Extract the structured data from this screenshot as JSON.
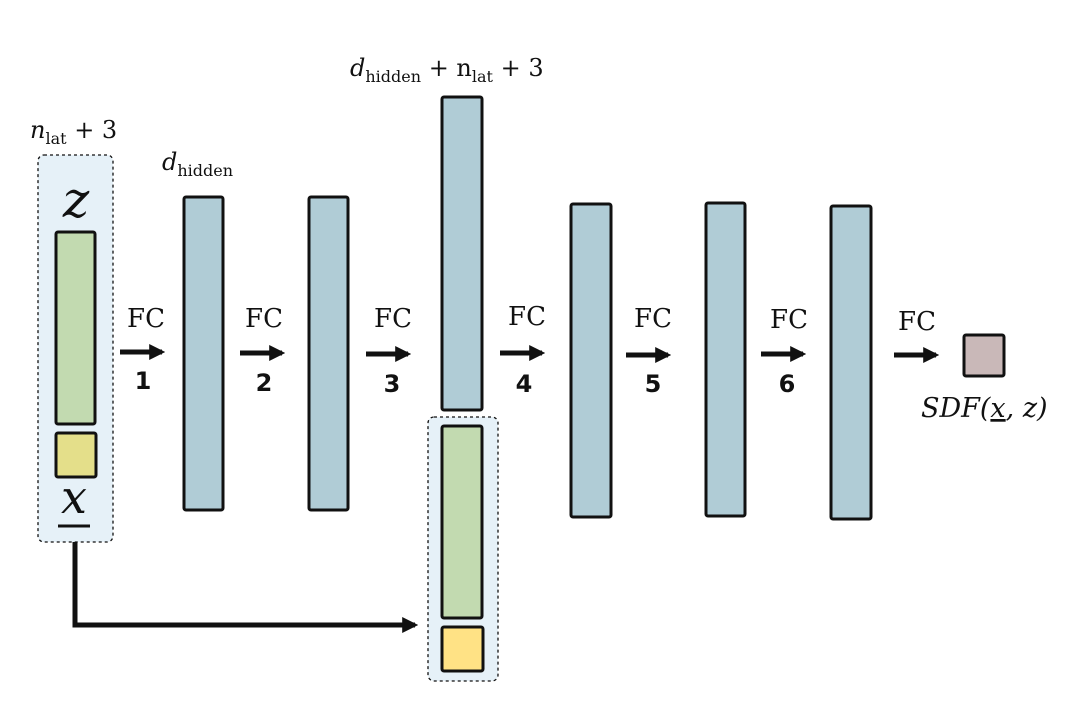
{
  "colors": {
    "layer": "#b0ccd6",
    "latent": "#c2dab0",
    "position_dark": "#e4df8a",
    "position_light": "#ffe285",
    "output": "#c9b8b8",
    "group_bg": "#e6f1f8",
    "stroke": "#111111"
  },
  "labels": {
    "input_size": {
      "base": "n",
      "sub": "lat",
      "rest": " + 3"
    },
    "hidden_size": {
      "base": "d",
      "sub": "hidden"
    },
    "skip_size": {
      "base": "d",
      "sub": "hidden",
      "mid": " + n",
      "sub2": "lat",
      "rest": " + 3"
    },
    "z": "z",
    "x": "x",
    "output": {
      "prefix": "SDF(",
      "x": "x",
      "suffix": ", z)"
    }
  },
  "fc_steps": [
    {
      "label": "FC",
      "number": "1"
    },
    {
      "label": "FC",
      "number": "2"
    },
    {
      "label": "FC",
      "number": "3"
    },
    {
      "label": "FC",
      "number": "4"
    },
    {
      "label": "FC",
      "number": "5"
    },
    {
      "label": "FC",
      "number": "6"
    },
    {
      "label": "FC",
      "number": ""
    }
  ]
}
